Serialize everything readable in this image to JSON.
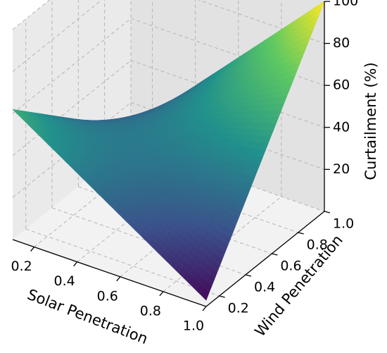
{
  "chart_data": {
    "type": "surface",
    "title": "",
    "xlabel": "Solar Penetration",
    "ylabel": "Wind Penetration",
    "zlabel": "Curtailment (%)",
    "x_ticks": [
      "0.2",
      "0.4",
      "0.6",
      "0.8",
      "1.0"
    ],
    "y_ticks": [
      "0.2",
      "0.4",
      "0.6",
      "0.8",
      "1.0"
    ],
    "z_ticks": [
      "20",
      "40",
      "60",
      "80",
      "100"
    ],
    "xlim": [
      0.1,
      1.0
    ],
    "ylim": [
      0.1,
      1.0
    ],
    "zlim": [
      0,
      100
    ],
    "grid": true,
    "colormap": "viridis",
    "corner_values": [
      {
        "solar": 0.1,
        "wind": 0.1,
        "curtailment": 62
      },
      {
        "solar": 0.1,
        "wind": 1.0,
        "curtailment": 8
      },
      {
        "solar": 1.0,
        "wind": 0.1,
        "curtailment": 3
      },
      {
        "solar": 1.0,
        "wind": 1.0,
        "curtailment": 100
      }
    ],
    "minimum_curtailment": 0
  },
  "colors": {
    "pane_left": "#eaeaea",
    "pane_back": "#e2e2e2",
    "pane_floor": "#f2f2f2",
    "grid": "#b4b4b4",
    "axis": "#000000"
  }
}
